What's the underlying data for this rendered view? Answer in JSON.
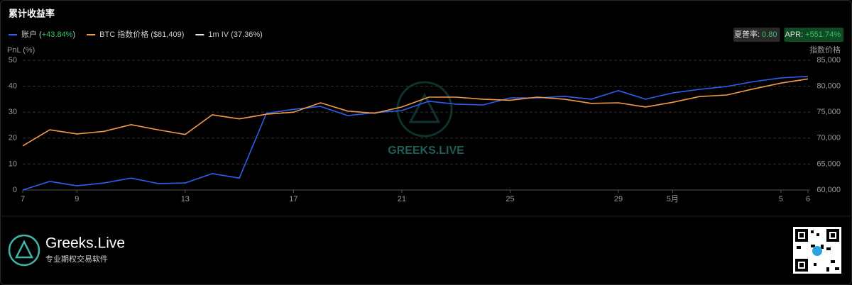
{
  "chart_data": {
    "type": "line",
    "title": "累计收益率",
    "y_label": "PnL (%)",
    "y2_label": "指数价格",
    "categories": [
      "7",
      null,
      "9",
      null,
      null,
      null,
      "13",
      null,
      null,
      null,
      "17",
      null,
      null,
      null,
      "21",
      null,
      null,
      null,
      "25",
      null,
      null,
      null,
      "29",
      null,
      "5月",
      null,
      null,
      null,
      "5",
      "6"
    ],
    "series": [
      {
        "name": "账户",
        "legend_value": "+43.84%",
        "color": "#2f5ff0",
        "values": [
          0,
          3.3,
          1.6,
          2.7,
          4.6,
          2.5,
          2.7,
          6.3,
          4.6,
          29.5,
          31.1,
          32.2,
          28.7,
          29.8,
          30.6,
          34.2,
          33.1,
          32.8,
          35.5,
          35.5,
          36.1,
          35.0,
          38.3,
          35.0,
          37.4,
          38.8,
          39.9,
          41.8,
          43.2,
          43.8
        ]
      },
      {
        "name": "BTC 指数价格",
        "legend_value": "$81,409",
        "color": "#f39a45",
        "axis": "y2",
        "values": [
          68500,
          71600,
          70800,
          71300,
          72600,
          71600,
          70700,
          74500,
          73700,
          74600,
          75000,
          76800,
          75200,
          74800,
          76000,
          77900,
          77900,
          77500,
          77300,
          77900,
          77500,
          76700,
          76800,
          76000,
          76900,
          78000,
          78300,
          79500,
          80600,
          81409
        ]
      },
      {
        "name": "1m IV",
        "legend_value": "37.36%",
        "color": "#e6e6e6",
        "values": [
          null,
          null,
          null,
          null,
          null,
          null,
          null,
          null,
          null,
          null,
          null,
          null,
          null,
          null,
          null,
          null,
          null,
          null,
          null,
          null,
          null,
          null,
          null,
          null,
          null,
          null,
          null,
          null,
          null,
          null
        ]
      }
    ],
    "ylim": [
      0,
      50
    ],
    "yticks": [
      0,
      10,
      20,
      30,
      40,
      50
    ],
    "y2lim": [
      60000,
      85000
    ],
    "y2ticks": [
      {
        "value": 60000,
        "label": "60,000"
      },
      {
        "value": 65000,
        "label": "65,000"
      },
      {
        "value": 70000,
        "label": "70,000"
      },
      {
        "value": 75000,
        "label": "75,000"
      },
      {
        "value": 80000,
        "label": "80,000"
      },
      {
        "value": 85000,
        "label": "85,000"
      }
    ],
    "grid": true,
    "stats": [
      {
        "label": "夏普率:",
        "value": "0.80"
      },
      {
        "label": "APR:",
        "value": "+551.74%"
      }
    ],
    "watermark": "GREEKS.LIVE",
    "footer": {
      "brand": "Greeks.Live",
      "tagline": "专业期权交易软件"
    }
  }
}
